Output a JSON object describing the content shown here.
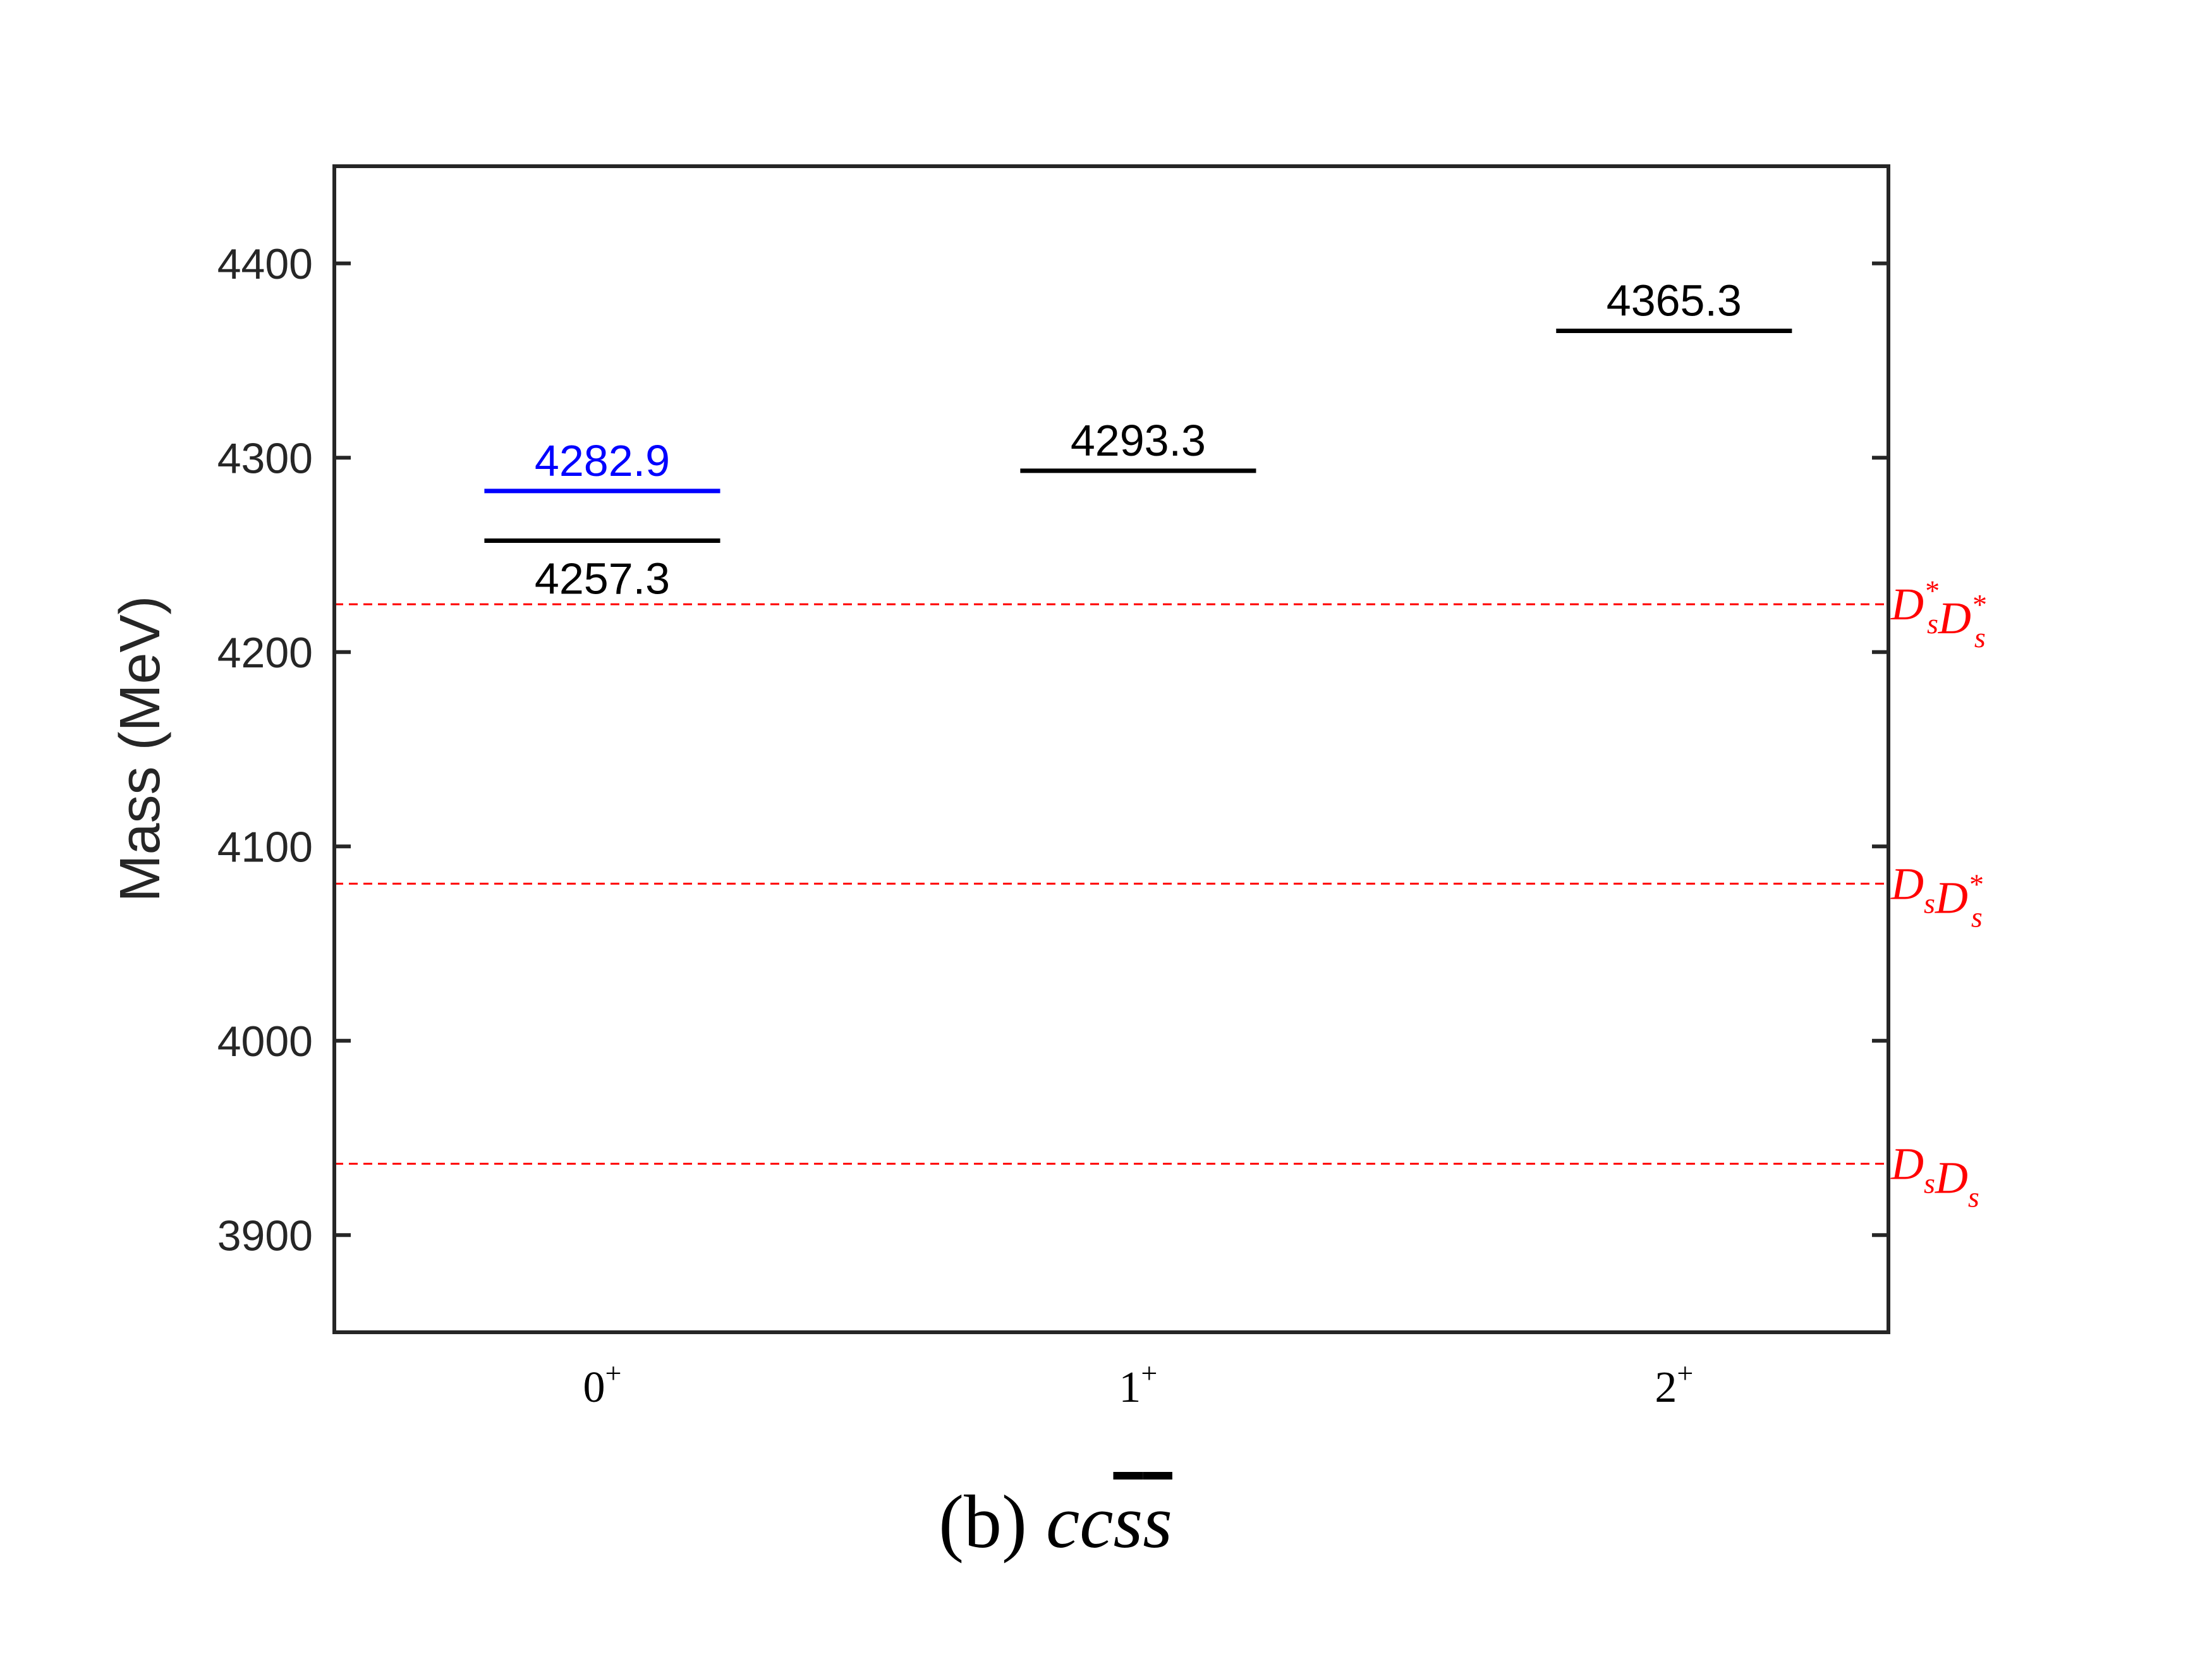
{
  "chart_data": {
    "type": "level-diagram",
    "ylabel": "Mass (MeV)",
    "ylim": [
      3850,
      4450
    ],
    "yticks": [
      3900,
      4000,
      4100,
      4200,
      4300,
      4400
    ],
    "ytick_labels": [
      "3900",
      "4000",
      "4100",
      "4200",
      "4300",
      "4400"
    ],
    "xlim": [
      -0.5,
      2.4
    ],
    "categories": [
      {
        "base": "0",
        "sup": "+"
      },
      {
        "base": "1",
        "sup": "+"
      },
      {
        "base": "2",
        "sup": "+"
      }
    ],
    "levels": [
      {
        "category": 0,
        "value": 4282.9,
        "label": "4282.9",
        "color": "#0000ff",
        "label_pos": "above"
      },
      {
        "category": 0,
        "value": 4257.3,
        "label": "4257.3",
        "color": "#000000",
        "label_pos": "below"
      },
      {
        "category": 1,
        "value": 4293.3,
        "label": "4293.3",
        "color": "#000000",
        "label_pos": "above"
      },
      {
        "category": 2,
        "value": 4365.3,
        "label": "4365.3",
        "color": "#000000",
        "label_pos": "above"
      }
    ],
    "thresholds": [
      {
        "value": 4224.6,
        "parts": [
          {
            "b": "D",
            "sub": "s",
            "sup": "*"
          },
          {
            "b": "D",
            "sub": "s",
            "sup": "*"
          }
        ],
        "color": "#ff0000"
      },
      {
        "value": 4080.8,
        "parts": [
          {
            "b": "D",
            "sub": "s",
            "sup": ""
          },
          {
            "b": "D",
            "sub": "s",
            "sup": "*"
          }
        ],
        "color": "#ff0000"
      },
      {
        "value": 3936.7,
        "parts": [
          {
            "b": "D",
            "sub": "s",
            "sup": ""
          },
          {
            "b": "D",
            "sub": "s",
            "sup": ""
          }
        ],
        "color": "#ff0000"
      }
    ],
    "caption": {
      "prefix": "(b) ",
      "math": "cc",
      "bar1": "s",
      "bar2": "s"
    },
    "grid": false
  }
}
